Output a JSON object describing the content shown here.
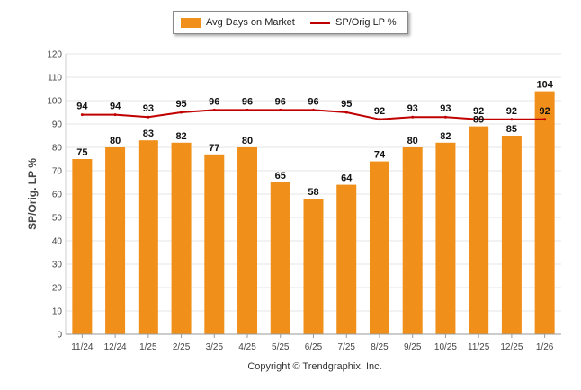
{
  "colors": {
    "bar": "#F0901A",
    "line": "#C00000",
    "grid": "#e6e6e6",
    "axis": "#999999"
  },
  "legend": {
    "bars_label": "Avg Days on Market",
    "line_label": "SP/Orig LP %"
  },
  "footer": {
    "copyright": "Copyright © Trendgraphix, Inc."
  },
  "chart_data": {
    "type": "bar",
    "title": "",
    "xlabel": "",
    "ylabel": "SP/Orig. LP %",
    "ylim": [
      0,
      120
    ],
    "yticks": [
      0,
      10,
      20,
      30,
      40,
      50,
      60,
      70,
      80,
      90,
      100,
      110,
      120
    ],
    "grid": true,
    "legend_position": "top-center",
    "categories": [
      "11/24",
      "12/24",
      "1/25",
      "2/25",
      "3/25",
      "4/25",
      "5/25",
      "6/25",
      "7/25",
      "8/25",
      "9/25",
      "10/25",
      "11/25",
      "12/25",
      "1/26"
    ],
    "series": [
      {
        "name": "Avg Days on Market",
        "type": "bar",
        "values": [
          75,
          80,
          83,
          82,
          77,
          80,
          65,
          58,
          64,
          74,
          80,
          82,
          89,
          85,
          104
        ]
      },
      {
        "name": "SP/Orig LP %",
        "type": "line",
        "values": [
          94,
          94,
          93,
          95,
          96,
          96,
          96,
          96,
          95,
          92,
          93,
          93,
          92,
          92,
          92
        ]
      }
    ]
  }
}
